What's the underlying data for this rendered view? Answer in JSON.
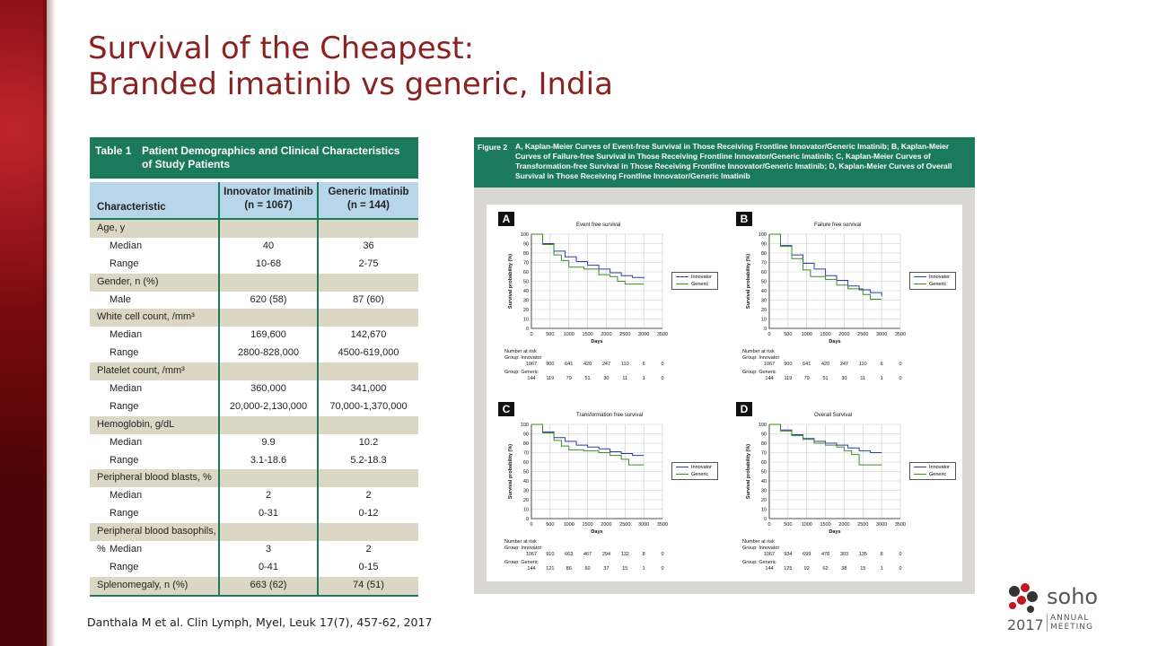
{
  "slide": {
    "title_line1": "Survival of the Cheapest:",
    "title_line2": "Branded imatinib vs generic, India",
    "citation": "Danthala M et al. Clin Lymph, Myel, Leuk 17(7), 457-62, 2017"
  },
  "table1": {
    "label": "Table 1",
    "caption": "Patient Demographics and Clinical Characteristics of Study Patients",
    "col_characteristic": "Characteristic",
    "col_innovator": "Innovator Imatinib",
    "col_innovator_n": "(n = 1067)",
    "col_generic": "Generic Imatinib",
    "col_generic_n": "(n = 144)",
    "rows": [
      {
        "type": "sec",
        "label": "Age, y",
        "a": "",
        "b": ""
      },
      {
        "type": "val",
        "label": "Median",
        "a": "40",
        "b": "36"
      },
      {
        "type": "val",
        "label": "Range",
        "a": "10-68",
        "b": "2-75"
      },
      {
        "type": "sec",
        "label": "Gender, n (%)",
        "a": "",
        "b": ""
      },
      {
        "type": "val",
        "label": "Male",
        "a": "620 (58)",
        "b": "87 (60)"
      },
      {
        "type": "sec",
        "label": "White cell count, /mm³",
        "a": "",
        "b": ""
      },
      {
        "type": "val",
        "label": "Median",
        "a": "169,600",
        "b": "142,670"
      },
      {
        "type": "val",
        "label": "Range",
        "a": "2800-828,000",
        "b": "4500-619,000"
      },
      {
        "type": "sec",
        "label": "Platelet count, /mm³",
        "a": "",
        "b": ""
      },
      {
        "type": "val",
        "label": "Median",
        "a": "360,000",
        "b": "341,000"
      },
      {
        "type": "val",
        "label": "Range",
        "a": "20,000-2,130,000",
        "b": "70,000-1,370,000"
      },
      {
        "type": "sec",
        "label": "Hemoglobin, g/dL",
        "a": "",
        "b": ""
      },
      {
        "type": "val",
        "label": "Median",
        "a": "9.9",
        "b": "10.2"
      },
      {
        "type": "val",
        "label": "Range",
        "a": "3.1-18.6",
        "b": "5.2-18.3"
      },
      {
        "type": "sec",
        "label": "Peripheral blood blasts, %",
        "a": "",
        "b": ""
      },
      {
        "type": "val",
        "label": "Median",
        "a": "2",
        "b": "2"
      },
      {
        "type": "val",
        "label": "Range",
        "a": "0-31",
        "b": "0-12"
      },
      {
        "type": "sec",
        "label": "Peripheral blood basophils, %",
        "a": "",
        "b": ""
      },
      {
        "type": "val",
        "label": "Median",
        "a": "3",
        "b": "2"
      },
      {
        "type": "val",
        "label": "Range",
        "a": "0-41",
        "b": "0-15"
      },
      {
        "type": "sec",
        "label": "Splenomegaly, n (%)",
        "a": "663 (62)",
        "b": "74 (51)"
      }
    ]
  },
  "figure2": {
    "label": "Figure 2",
    "caption": "A, Kaplan-Meier Curves of Event-free Survival in Those Receiving Frontline Innovator/Generic Imatinib; B, Kaplan-Meier Curves of Failure-free Survival in Those Receiving Frontline Innovator/Generic Imatinib; C, Kaplan-Meier Curves of Transformation-free Survival in Those Receiving Frontline Innovator/Generic Imatinib; D, Kaplan-Meier Curves of Overall Survival in Those Receiving Frontline Innovator/Generic Imatinib"
  },
  "chart_data": [
    {
      "type": "line",
      "panel": "A",
      "title": "Event free survival",
      "xlabel": "Days",
      "ylabel": "Survival probability (%)",
      "xlim": [
        0,
        3500
      ],
      "ylim": [
        0,
        100
      ],
      "xticks": [
        0,
        500,
        1000,
        1500,
        2000,
        2500,
        3000,
        3500
      ],
      "yticks": [
        0,
        10,
        20,
        30,
        40,
        50,
        60,
        70,
        80,
        90,
        100
      ],
      "series": [
        {
          "name": "Innovator",
          "color": "#2d3aa8",
          "x": [
            0,
            300,
            600,
            900,
            1200,
            1500,
            1800,
            2100,
            2400,
            2700,
            3000
          ],
          "y": [
            100,
            90,
            82,
            76,
            71,
            67,
            63,
            59,
            56,
            54,
            53
          ]
        },
        {
          "name": "Generic",
          "color": "#3d8a2a",
          "x": [
            0,
            300,
            600,
            800,
            1000,
            1400,
            1800,
            2100,
            2300,
            2500,
            2900,
            3000
          ],
          "y": [
            100,
            89,
            78,
            72,
            65,
            63,
            57,
            55,
            50,
            47,
            47,
            47
          ]
        }
      ],
      "risk_header": "Number at risk",
      "risk_groups": [
        {
          "label": "Group: Innovator",
          "values": [
            "1067",
            "900",
            "641",
            "420",
            "247",
            "110",
            "6",
            "0"
          ]
        },
        {
          "label": "Group: Generic",
          "values": [
            "144",
            "119",
            "79",
            "51",
            "30",
            "11",
            "1",
            "0"
          ]
        }
      ]
    },
    {
      "type": "line",
      "panel": "B",
      "title": "Failure free survival",
      "xlabel": "Days",
      "ylabel": "Survival probability (%)",
      "xlim": [
        0,
        3500
      ],
      "ylim": [
        0,
        100
      ],
      "xticks": [
        0,
        500,
        1000,
        1500,
        2000,
        2500,
        3000,
        3500
      ],
      "yticks": [
        0,
        10,
        20,
        30,
        40,
        50,
        60,
        70,
        80,
        90,
        100
      ],
      "series": [
        {
          "name": "Innovator",
          "color": "#2d3aa8",
          "x": [
            0,
            300,
            600,
            900,
            1200,
            1500,
            1800,
            2100,
            2400,
            2700,
            3000
          ],
          "y": [
            100,
            88,
            78,
            69,
            63,
            56,
            51,
            45,
            41,
            38,
            34
          ]
        },
        {
          "name": "Generic",
          "color": "#3d8a2a",
          "x": [
            0,
            300,
            600,
            900,
            1100,
            1500,
            1800,
            2100,
            2500,
            2700,
            3000
          ],
          "y": [
            100,
            87,
            74,
            62,
            55,
            52,
            46,
            42,
            36,
            31,
            31
          ]
        }
      ],
      "risk_header": "Number at risk",
      "risk_groups": [
        {
          "label": "Group: Innovator",
          "values": [
            "1067",
            "900",
            "641",
            "420",
            "247",
            "110",
            "6",
            "0"
          ]
        },
        {
          "label": "Group: Generic",
          "values": [
            "144",
            "119",
            "79",
            "51",
            "30",
            "11",
            "1",
            "0"
          ]
        }
      ]
    },
    {
      "type": "line",
      "panel": "C",
      "title": "Transformation free survival",
      "xlabel": "Days",
      "ylabel": "Survival probability (%)",
      "xlim": [
        0,
        3500
      ],
      "ylim": [
        0,
        100
      ],
      "xticks": [
        0,
        500,
        1000,
        1500,
        2000,
        2500,
        3000,
        3500
      ],
      "yticks": [
        0,
        10,
        20,
        30,
        40,
        50,
        60,
        70,
        80,
        90,
        100
      ],
      "series": [
        {
          "name": "Innovator",
          "color": "#2d3aa8",
          "x": [
            0,
            300,
            600,
            900,
            1200,
            1500,
            1800,
            2100,
            2400,
            2700,
            3000
          ],
          "y": [
            100,
            92,
            86,
            82,
            78,
            76,
            74,
            71,
            69,
            67,
            67
          ]
        },
        {
          "name": "Generic",
          "color": "#3d8a2a",
          "x": [
            0,
            300,
            600,
            800,
            1000,
            1400,
            1800,
            2100,
            2400,
            2600,
            3000
          ],
          "y": [
            100,
            91,
            83,
            77,
            73,
            72,
            70,
            67,
            63,
            57,
            57
          ]
        }
      ],
      "risk_header": "Number at risk",
      "risk_groups": [
        {
          "label": "Group: Innovator",
          "values": [
            "1067",
            "910",
            "663",
            "467",
            "294",
            "132",
            "8",
            "0"
          ]
        },
        {
          "label": "Group: Generic",
          "values": [
            "144",
            "121",
            "86",
            "60",
            "37",
            "15",
            "1",
            "0"
          ]
        }
      ]
    },
    {
      "type": "line",
      "panel": "D",
      "title": "Overall Survival",
      "xlabel": "Days",
      "ylabel": "Survival probability (%)",
      "xlim": [
        0,
        3500
      ],
      "ylim": [
        0,
        100
      ],
      "xticks": [
        0,
        500,
        1000,
        1500,
        2000,
        2500,
        3000,
        3500
      ],
      "yticks": [
        0,
        10,
        20,
        30,
        40,
        50,
        60,
        70,
        80,
        90,
        100
      ],
      "series": [
        {
          "name": "Innovator",
          "color": "#2d3aa8",
          "x": [
            0,
            300,
            600,
            900,
            1200,
            1500,
            1800,
            2100,
            2400,
            2700,
            3000
          ],
          "y": [
            100,
            94,
            89,
            85,
            82,
            80,
            78,
            75,
            72,
            70,
            70
          ]
        },
        {
          "name": "Generic",
          "color": "#3d8a2a",
          "x": [
            0,
            300,
            600,
            900,
            1200,
            1500,
            1800,
            2000,
            2200,
            2400,
            3000
          ],
          "y": [
            100,
            93,
            88,
            84,
            80,
            78,
            76,
            72,
            68,
            57,
            57
          ]
        }
      ],
      "risk_header": "Number at risk",
      "risk_groups": [
        {
          "label": "Group: Innovator",
          "values": [
            "1067",
            "934",
            "699",
            "478",
            "303",
            "135",
            "8",
            "0"
          ]
        },
        {
          "label": "Group: Generic",
          "values": [
            "144",
            "125",
            "92",
            "62",
            "38",
            "15",
            "1",
            "0"
          ]
        }
      ]
    }
  ],
  "logo": {
    "word": "soho",
    "year": "2017",
    "annual": "ANNUAL",
    "meeting": "MEETING"
  }
}
